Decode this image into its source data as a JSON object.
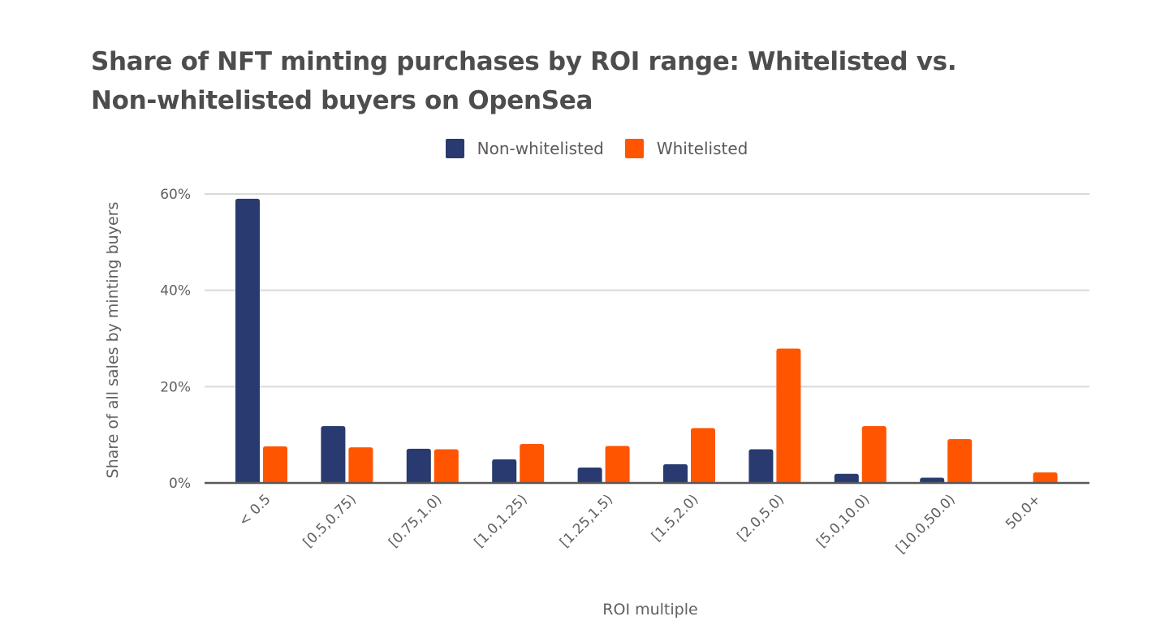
{
  "chart_data": {
    "type": "bar",
    "title": "Share of NFT minting purchases by ROI range: Whitelisted vs. Non-whitelisted buyers on OpenSea",
    "title_lines": [
      "Share of NFT minting purchases by ROI range: Whitelisted vs.",
      "Non-whitelisted buyers on OpenSea"
    ],
    "xlabel": "ROI multiple",
    "ylabel": "Share of all sales by minting buyers",
    "categories": [
      "< 0.5",
      "[0.5,0.75)",
      "[0.75,1.0)",
      "[1.0,1.25)",
      "[1.25,1.5)",
      "[1.5,2.0)",
      "[2.0,5.0)",
      "[5.0,10.0)",
      "[10.0,50.0)",
      "50.0+"
    ],
    "series": [
      {
        "name": "Non-whitelisted",
        "color": "#283a70",
        "values": [
          59.0,
          11.8,
          7.1,
          4.9,
          3.2,
          3.9,
          7.0,
          1.9,
          1.1,
          0
        ]
      },
      {
        "name": "Whitelisted",
        "color": "#ff5500",
        "values": [
          7.6,
          7.4,
          7.0,
          8.1,
          7.7,
          11.4,
          27.9,
          11.8,
          9.1,
          2.2
        ]
      }
    ],
    "ylim": [
      0,
      60
    ],
    "yticks": [
      0,
      20,
      40,
      60
    ],
    "ytick_labels": [
      "0%",
      "20%",
      "40%",
      "60%"
    ],
    "y_unit": "%",
    "grid": true,
    "legend_position": "top-center",
    "xtick_rotation": "-45"
  }
}
